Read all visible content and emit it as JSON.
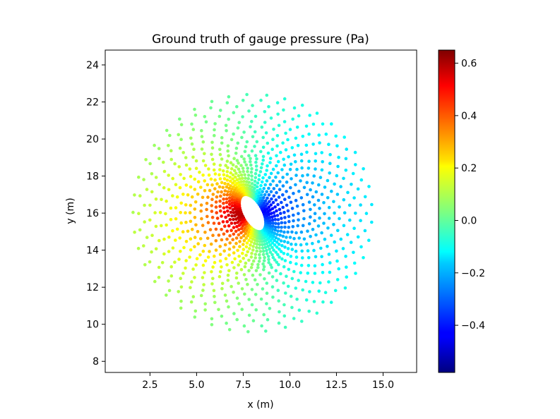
{
  "chart_data": {
    "type": "scatter",
    "title": "Ground truth of gauge pressure (Pa)",
    "xlabel": "x (m)",
    "ylabel": "y (m)",
    "xlim": [
      0.1,
      16.8
    ],
    "ylim": [
      7.4,
      24.8
    ],
    "xticks": [
      2.5,
      5.0,
      7.5,
      10.0,
      12.5,
      15.0
    ],
    "xtick_labels": [
      "2.5",
      "5.0",
      "7.5",
      "10.0",
      "12.5",
      "15.0"
    ],
    "yticks": [
      8,
      10,
      12,
      14,
      16,
      18,
      20,
      22,
      24
    ],
    "ytick_labels": [
      "8",
      "10",
      "12",
      "14",
      "16",
      "18",
      "20",
      "22",
      "24"
    ],
    "colormap": "jet",
    "colorbar": {
      "vmin": -0.58,
      "vmax": 0.65,
      "ticks": [
        -0.4,
        -0.2,
        0.0,
        0.2,
        0.4,
        0.6
      ],
      "tick_labels": [
        "−0.4",
        "−0.2",
        "0.0",
        "0.2",
        "0.4",
        "0.6"
      ]
    },
    "grid": false,
    "field": {
      "description_of_pattern": "pressure around an elliptical obstacle",
      "obstacle_center": [
        8.0,
        16.0
      ],
      "obstacle_semi_axes": [
        0.55,
        1.1
      ],
      "obstacle_tilt_deg": 28,
      "outer_radius": 7.6,
      "high_side_peak": 0.65,
      "low_side_peak": -0.58
    }
  }
}
